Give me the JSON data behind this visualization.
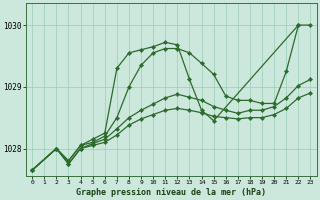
{
  "background_color": "#cce8dc",
  "grid_color": "#99ccb8",
  "line_color": "#2d6a2d",
  "marker_color": "#2d6a2d",
  "title": "Graphe pression niveau de la mer (hPa)",
  "xlim": [
    -0.5,
    23.5
  ],
  "ylim": [
    1027.55,
    1030.35
  ],
  "yticks": [
    1028,
    1029,
    1030
  ],
  "xticks": [
    0,
    1,
    2,
    3,
    4,
    5,
    6,
    7,
    8,
    9,
    10,
    11,
    12,
    13,
    14,
    15,
    16,
    17,
    18,
    19,
    20,
    21,
    22,
    23
  ],
  "series": [
    {
      "x": [
        0,
        2,
        3,
        4,
        5,
        6,
        7,
        8,
        9,
        10,
        11,
        12,
        13,
        14,
        15,
        22,
        23
      ],
      "y": [
        1027.65,
        1028.0,
        1027.8,
        1028.05,
        1028.15,
        1028.25,
        1029.3,
        1029.55,
        1029.6,
        1029.65,
        1029.72,
        1029.68,
        1029.12,
        1028.62,
        1028.45,
        1030.0,
        1030.0
      ]
    },
    {
      "x": [
        0,
        2,
        3,
        4,
        5,
        6,
        7,
        8,
        9,
        10,
        11,
        12,
        13,
        14,
        15,
        16,
        17,
        18,
        19,
        20,
        21,
        22
      ],
      "y": [
        1027.65,
        1028.0,
        1027.8,
        1028.05,
        1028.1,
        1028.2,
        1028.5,
        1029.0,
        1029.35,
        1029.55,
        1029.62,
        1029.62,
        1029.55,
        1029.38,
        1029.2,
        1028.85,
        1028.78,
        1028.78,
        1028.73,
        1028.73,
        1029.25,
        1030.0
      ]
    },
    {
      "x": [
        0,
        2,
        3,
        4,
        5,
        6,
        7,
        8,
        9,
        10,
        11,
        12,
        13,
        14,
        15,
        16,
        17,
        18,
        19,
        20,
        21,
        22,
        23
      ],
      "y": [
        1027.65,
        1028.0,
        1027.75,
        1028.0,
        1028.08,
        1028.15,
        1028.32,
        1028.5,
        1028.62,
        1028.72,
        1028.82,
        1028.88,
        1028.83,
        1028.78,
        1028.68,
        1028.62,
        1028.57,
        1028.62,
        1028.62,
        1028.68,
        1028.82,
        1029.02,
        1029.12
      ]
    },
    {
      "x": [
        0,
        2,
        3,
        4,
        5,
        6,
        7,
        8,
        9,
        10,
        11,
        12,
        13,
        14,
        15,
        16,
        17,
        18,
        19,
        20,
        21,
        22,
        23
      ],
      "y": [
        1027.65,
        1028.0,
        1027.75,
        1028.0,
        1028.05,
        1028.1,
        1028.22,
        1028.38,
        1028.48,
        1028.55,
        1028.62,
        1028.65,
        1028.62,
        1028.58,
        1028.52,
        1028.5,
        1028.48,
        1028.5,
        1028.5,
        1028.55,
        1028.65,
        1028.82,
        1028.9
      ]
    }
  ]
}
